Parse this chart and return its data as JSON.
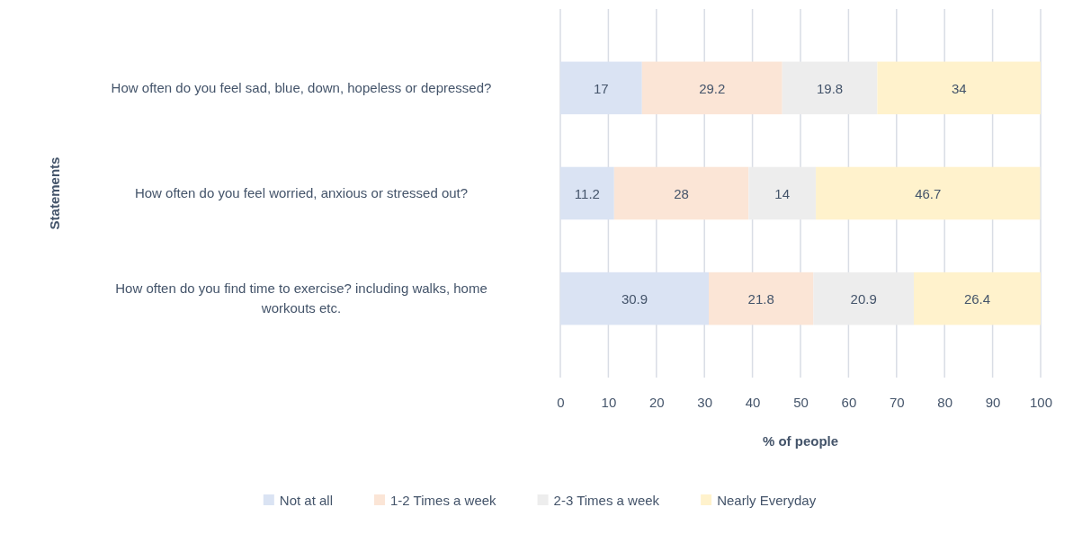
{
  "chart_data": {
    "type": "bar",
    "orientation": "horizontal",
    "stacked": true,
    "xlabel": "% of people",
    "ylabel": "Statements",
    "categories": [
      "How often do you feel sad, blue, down, hopeless or depressed?",
      "How often do you feel worried, anxious or stressed out?",
      "How often do you find time to exercise? including walks, home workouts etc."
    ],
    "series": [
      {
        "name": "Not at all",
        "color": "#dae3f3",
        "values": [
          17,
          11.2,
          30.9
        ]
      },
      {
        "name": "1-2 Times a week",
        "color": "#fbe5d6",
        "values": [
          29.2,
          28,
          21.8
        ]
      },
      {
        "name": "2-3 Times a week",
        "color": "#ededed",
        "values": [
          19.8,
          14,
          20.9
        ]
      },
      {
        "name": "Nearly Everyday",
        "color": "#fff2cc",
        "values": [
          34,
          46.7,
          26.4
        ]
      }
    ],
    "xlim": [
      0,
      100
    ],
    "xticks": [
      0,
      10,
      20,
      30,
      40,
      50,
      60,
      70,
      80,
      90,
      100
    ],
    "grid": "x",
    "legend": "bottom",
    "data_labels": true
  }
}
